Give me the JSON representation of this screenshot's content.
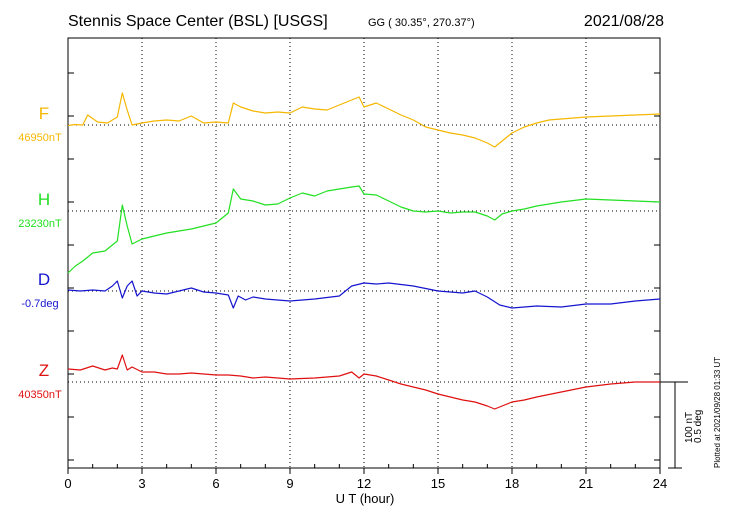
{
  "header": {
    "station": "Stennis Space Center (BSL)  [USGS]",
    "coords": "GG ( 30.35°, 270.37°)",
    "date": "2021/08/28"
  },
  "channels": [
    {
      "letter": "F",
      "baseline": "46950nT",
      "color": "#f5b700"
    },
    {
      "letter": "H",
      "baseline": "23230nT",
      "color": "#22e022"
    },
    {
      "letter": "D",
      "baseline": "-0.7deg",
      "color": "#1515d0"
    },
    {
      "letter": "Z",
      "baseline": "40350nT",
      "color": "#e01010"
    }
  ],
  "xlabel": "U T (hour)",
  "scale": {
    "line1": "100 nT",
    "line2": "0.5 deg"
  },
  "plotted": "Plotted at 2021/09/28 01:33 UT",
  "chart_data": {
    "type": "line",
    "title": "Stennis Space Center (BSL)  [USGS]",
    "xlabel": "U T (hour)",
    "xlim": [
      0,
      24
    ],
    "xticks": [
      0,
      3,
      6,
      9,
      12,
      15,
      18,
      21,
      24
    ],
    "grid": true,
    "scale_bar": "100 nT / 0.5 deg",
    "series": [
      {
        "name": "F",
        "baseline": "46950nT",
        "color": "#f5b700",
        "x": [
          0,
          0.3,
          0.6,
          0.8,
          1.2,
          1.6,
          2.0,
          2.2,
          2.4,
          2.6,
          3.0,
          3.5,
          4.0,
          4.5,
          5.0,
          5.5,
          6.0,
          6.5,
          6.7,
          7.0,
          7.5,
          8.0,
          8.5,
          9.0,
          9.5,
          10.0,
          10.5,
          11.0,
          11.5,
          11.8,
          12.0,
          12.5,
          13.0,
          13.5,
          14.0,
          14.5,
          15.0,
          15.5,
          16.0,
          16.5,
          17.0,
          17.3,
          17.6,
          18.0,
          18.5,
          19.0,
          19.5,
          20.0,
          21.0,
          22.0,
          23.0,
          24.0
        ],
        "y": [
          -0.5,
          0.5,
          0,
          10,
          3,
          2,
          8,
          32,
          15,
          0,
          2,
          4,
          5,
          4,
          9,
          2,
          3,
          2,
          22,
          18,
          14,
          12,
          13,
          12,
          18,
          16,
          15,
          20,
          25,
          28,
          18,
          22,
          16,
          10,
          5,
          -2,
          -5,
          -8,
          -10,
          -13,
          -18,
          -22,
          -16,
          -8,
          -2,
          2,
          5,
          6,
          8,
          9,
          10,
          11
        ]
      },
      {
        "name": "H",
        "baseline": "23230nT",
        "color": "#22e022",
        "x": [
          0,
          0.3,
          0.6,
          1.0,
          1.5,
          2.0,
          2.2,
          2.4,
          2.6,
          3.0,
          3.5,
          4.0,
          4.5,
          5.0,
          5.5,
          6.0,
          6.5,
          6.7,
          7.0,
          7.5,
          8.0,
          8.5,
          9.0,
          9.5,
          10.0,
          10.5,
          11.0,
          11.5,
          11.8,
          12.0,
          12.5,
          13.0,
          13.5,
          14.0,
          14.5,
          15.0,
          15.5,
          16.0,
          16.5,
          17.0,
          17.3,
          17.6,
          18.0,
          18.5,
          19.0,
          19.5,
          20.0,
          21.0,
          22.0,
          23.0,
          24.0
        ],
        "y": [
          -62,
          -55,
          -50,
          -42,
          -40,
          -30,
          6,
          -15,
          -33,
          -28,
          -25,
          -22,
          -20,
          -18,
          -15,
          -12,
          -2,
          22,
          12,
          10,
          6,
          7,
          13,
          18,
          15,
          20,
          22,
          24,
          25,
          17,
          16,
          10,
          4,
          0,
          -1,
          0,
          -2,
          -1,
          -1,
          -5,
          -9,
          -3,
          0,
          2,
          5,
          7,
          9,
          12,
          11,
          10,
          9
        ]
      },
      {
        "name": "D",
        "baseline": "-0.7deg",
        "color": "#1515d0",
        "x": [
          0,
          0.5,
          1.0,
          1.5,
          1.8,
          2.0,
          2.2,
          2.4,
          2.6,
          2.8,
          3.0,
          3.5,
          4.0,
          5.0,
          5.5,
          6.0,
          6.5,
          6.7,
          6.9,
          7.2,
          7.5,
          8.0,
          9.0,
          10.0,
          11.0,
          11.5,
          12.0,
          12.5,
          13.0,
          14.0,
          15.0,
          16.0,
          16.5,
          17.0,
          17.5,
          18.0,
          19.0,
          20.0,
          21.0,
          22.0,
          23.0,
          24.0
        ],
        "y": [
          1,
          0,
          1,
          0,
          5,
          10,
          -7,
          5,
          10,
          -5,
          0,
          -2,
          -3,
          3,
          -1,
          -2,
          -4,
          -17,
          -5,
          -9,
          -6,
          -8,
          -10,
          -8,
          -5,
          5,
          8,
          7,
          8,
          5,
          0,
          -2,
          0,
          -6,
          -14,
          -17,
          -15,
          -16,
          -13,
          -13,
          -10,
          -8
        ]
      },
      {
        "name": "Z",
        "baseline": "40350nT",
        "color": "#e01010",
        "x": [
          0,
          0.5,
          1.0,
          1.5,
          1.8,
          2.0,
          2.2,
          2.4,
          2.6,
          3.0,
          3.5,
          4.0,
          4.5,
          5.0,
          5.5,
          6.0,
          6.5,
          7.0,
          7.5,
          8.0,
          9.0,
          10.0,
          11.0,
          11.5,
          11.8,
          12.0,
          12.5,
          13.0,
          13.5,
          14.0,
          14.5,
          15.0,
          15.5,
          16.0,
          16.5,
          17.0,
          17.3,
          17.6,
          18.0,
          18.5,
          19.0,
          20.0,
          21.0,
          22.0,
          23.0,
          24.0
        ],
        "y": [
          13,
          12,
          16,
          12,
          14,
          13,
          27,
          12,
          15,
          10,
          10,
          8,
          8,
          9,
          8,
          7,
          7,
          6,
          4,
          5,
          3,
          4,
          6,
          10,
          4,
          8,
          6,
          2,
          -2,
          -5,
          -8,
          -12,
          -15,
          -18,
          -20,
          -24,
          -27,
          -24,
          -20,
          -18,
          -15,
          -10,
          -5,
          -2,
          0,
          0
        ]
      }
    ]
  }
}
